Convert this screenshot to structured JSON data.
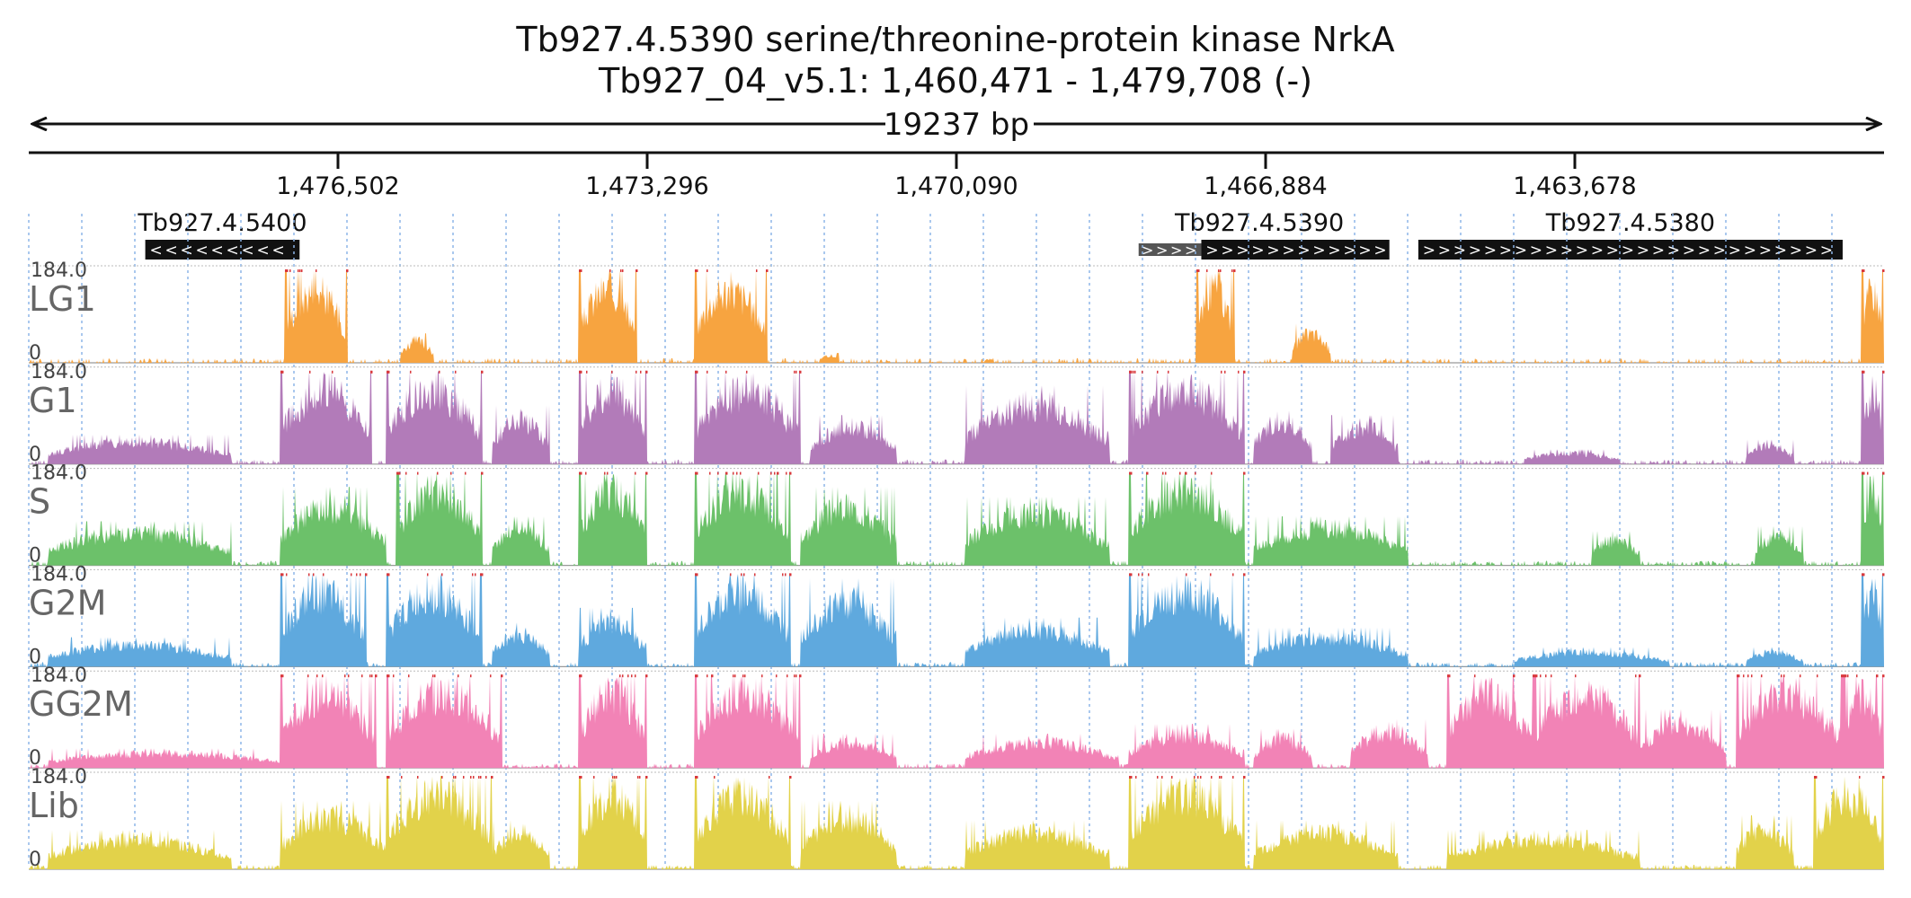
{
  "chart_data": {
    "type": "area",
    "title": "Tb927.4.5390  serine/threonine-protein kinase NrkA",
    "subtitle": "Tb927_04_v5.1: 1,460,471 - 1,479,708 (-)",
    "span_label": "19237 bp",
    "x_ticks": [
      "1,476,502",
      "1,473,296",
      "1,470,090",
      "1,466,884",
      "1,463,678"
    ],
    "genes": [
      {
        "name": "Tb927.4.5400",
        "strand": "-",
        "start": 1478500,
        "end": 1476900
      },
      {
        "name": "Tb927.4.5390",
        "strand": "+",
        "start": 1467550,
        "end": 1465600,
        "utr_start": 1468200
      },
      {
        "name": "Tb927.4.5380",
        "strand": "+",
        "start": 1465300,
        "end": 1460900
      }
    ],
    "y_range": [
      "0",
      "184.0"
    ],
    "series": [
      {
        "name": "LG1",
        "color": "#F7A440",
        "seed": 11,
        "coverage": 0.35,
        "peaks": [
          [
            1477050,
            1476400,
            1.0
          ],
          [
            1475850,
            1475500,
            0.3
          ],
          [
            1474000,
            1473400,
            1.0
          ],
          [
            1472800,
            1472050,
            1.0
          ],
          [
            1471500,
            1471300,
            0.1
          ],
          [
            1469800,
            1469700,
            0.05
          ],
          [
            1467600,
            1467200,
            1.0
          ],
          [
            1466600,
            1466200,
            0.4
          ],
          [
            1460700,
            1460471,
            1.0
          ]
        ]
      },
      {
        "name": "G1",
        "color": "#B27BB9",
        "seed": 23,
        "coverage": 0.55,
        "peaks": [
          [
            1479500,
            1477600,
            0.3
          ],
          [
            1477100,
            1476150,
            1.0
          ],
          [
            1476000,
            1475000,
            1.0
          ],
          [
            1474900,
            1474300,
            0.6
          ],
          [
            1474000,
            1473300,
            1.0
          ],
          [
            1472800,
            1471700,
            1.0
          ],
          [
            1471600,
            1470700,
            0.5
          ],
          [
            1470000,
            1468500,
            0.8
          ],
          [
            1468300,
            1467100,
            1.0
          ],
          [
            1467000,
            1466400,
            0.6
          ],
          [
            1466200,
            1465500,
            0.5
          ],
          [
            1464200,
            1463200,
            0.15
          ],
          [
            1461900,
            1461400,
            0.25
          ],
          [
            1460700,
            1460471,
            1.0
          ]
        ]
      },
      {
        "name": "S",
        "color": "#6CC16A",
        "seed": 37,
        "coverage": 0.55,
        "peaks": [
          [
            1479500,
            1477600,
            0.45
          ],
          [
            1477100,
            1476000,
            0.8
          ],
          [
            1475900,
            1475000,
            1.0
          ],
          [
            1474900,
            1474300,
            0.5
          ],
          [
            1474000,
            1473300,
            1.0
          ],
          [
            1472800,
            1471800,
            1.0
          ],
          [
            1471700,
            1470700,
            0.8
          ],
          [
            1470000,
            1468500,
            0.7
          ],
          [
            1468300,
            1467100,
            1.0
          ],
          [
            1467000,
            1465400,
            0.5
          ],
          [
            1463500,
            1463000,
            0.35
          ],
          [
            1461800,
            1461300,
            0.4
          ],
          [
            1460700,
            1460471,
            1.0
          ]
        ]
      },
      {
        "name": "G2M",
        "color": "#5FA9DE",
        "seed": 51,
        "coverage": 0.55,
        "peaks": [
          [
            1479500,
            1477600,
            0.3
          ],
          [
            1477100,
            1476200,
            1.0
          ],
          [
            1476000,
            1475000,
            1.0
          ],
          [
            1474900,
            1474300,
            0.45
          ],
          [
            1474000,
            1473300,
            0.6
          ],
          [
            1472800,
            1471800,
            1.0
          ],
          [
            1471700,
            1470700,
            0.9
          ],
          [
            1470000,
            1468500,
            0.5
          ],
          [
            1468300,
            1467100,
            1.0
          ],
          [
            1467000,
            1465400,
            0.4
          ],
          [
            1464300,
            1462700,
            0.2
          ],
          [
            1461900,
            1461300,
            0.2
          ],
          [
            1460700,
            1460471,
            1.0
          ]
        ]
      },
      {
        "name": "GG2M",
        "color": "#F283B6",
        "seed": 67,
        "coverage": 0.55,
        "peaks": [
          [
            1479500,
            1477000,
            0.2
          ],
          [
            1477100,
            1476100,
            1.0
          ],
          [
            1476000,
            1474800,
            1.0
          ],
          [
            1474000,
            1473300,
            1.0
          ],
          [
            1472800,
            1471700,
            1.0
          ],
          [
            1471600,
            1470700,
            0.35
          ],
          [
            1470000,
            1468400,
            0.35
          ],
          [
            1468300,
            1467100,
            0.45
          ],
          [
            1467000,
            1466400,
            0.4
          ],
          [
            1466000,
            1465200,
            0.5
          ],
          [
            1465000,
            1464100,
            1.0
          ],
          [
            1464100,
            1463000,
            1.0
          ],
          [
            1463000,
            1462100,
            0.6
          ],
          [
            1462000,
            1460900,
            1.0
          ],
          [
            1460900,
            1460471,
            1.0
          ]
        ]
      },
      {
        "name": "Lib",
        "color": "#E2D24A",
        "seed": 89,
        "coverage": 0.55,
        "peaks": [
          [
            1479500,
            1477600,
            0.4
          ],
          [
            1477100,
            1476000,
            0.7
          ],
          [
            1476000,
            1474900,
            1.0
          ],
          [
            1474900,
            1474300,
            0.5
          ],
          [
            1474000,
            1473300,
            1.0
          ],
          [
            1472800,
            1471800,
            1.0
          ],
          [
            1471700,
            1470700,
            0.7
          ],
          [
            1470000,
            1468500,
            0.5
          ],
          [
            1468300,
            1467100,
            1.0
          ],
          [
            1467000,
            1465500,
            0.5
          ],
          [
            1465000,
            1463000,
            0.4
          ],
          [
            1462000,
            1461400,
            0.55
          ],
          [
            1461200,
            1460471,
            1.0
          ]
        ]
      }
    ]
  }
}
